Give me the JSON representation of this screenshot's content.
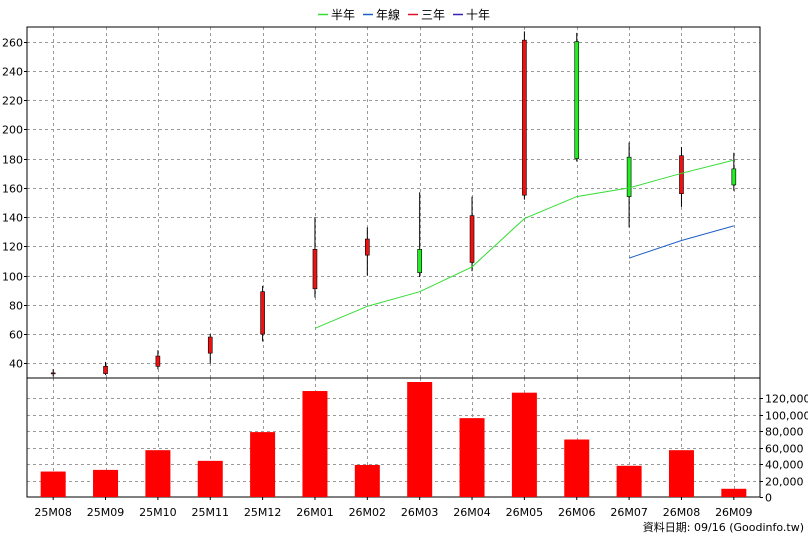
{
  "chart_data": {
    "type": "candlestick+line+bar",
    "legend": [
      {
        "name": "半年",
        "color": "#33dd33"
      },
      {
        "name": "年線",
        "color": "#1f5fc8"
      },
      {
        "name": "三年",
        "color": "#e0102a"
      },
      {
        "name": "十年",
        "color": "#3a1fb0"
      }
    ],
    "categories": [
      "25M08",
      "25M09",
      "25M10",
      "25M11",
      "25M12",
      "26M01",
      "26M02",
      "26M03",
      "26M04",
      "26M05",
      "26M06",
      "26M07",
      "26M08",
      "26M09"
    ],
    "price_axis": {
      "range": [
        30,
        270
      ],
      "ticks": [
        40,
        60,
        80,
        100,
        120,
        140,
        160,
        180,
        200,
        220,
        240,
        260
      ]
    },
    "volume_axis": {
      "range": [
        0,
        140000
      ],
      "ticks": [
        0,
        20000,
        40000,
        60000,
        80000,
        100000,
        120000
      ],
      "tick_labels": [
        "0",
        "20,000",
        "40,000",
        "60,000",
        "80,000",
        "100,000",
        "120,000"
      ]
    },
    "candles": [
      {
        "open": 33,
        "close": 33.5,
        "high": 36,
        "low": 31
      },
      {
        "open": 33,
        "close": 38,
        "high": 41,
        "low": 32
      },
      {
        "open": 38,
        "close": 45,
        "high": 49,
        "low": 36
      },
      {
        "open": 47,
        "close": 58,
        "high": 60,
        "low": 40
      },
      {
        "open": 60,
        "close": 89,
        "high": 93,
        "low": 55
      },
      {
        "open": 91,
        "close": 118,
        "high": 140,
        "low": 85
      },
      {
        "open": 114,
        "close": 125,
        "high": 133,
        "low": 100
      },
      {
        "open": 118,
        "close": 102,
        "high": 157,
        "low": 99
      },
      {
        "open": 109,
        "close": 141,
        "high": 154,
        "low": 103
      },
      {
        "open": 155,
        "close": 261,
        "high": 267,
        "low": 152
      },
      {
        "open": 260,
        "close": 180,
        "high": 266,
        "low": 178
      },
      {
        "open": 181,
        "close": 154,
        "high": 191,
        "low": 133
      },
      {
        "open": 156,
        "close": 182,
        "high": 188,
        "low": 147
      },
      {
        "open": 173,
        "close": 162,
        "high": 184,
        "low": 158
      }
    ],
    "half_year_line": [
      null,
      null,
      null,
      null,
      null,
      64,
      79,
      89,
      106,
      139,
      154,
      160,
      170,
      179
    ],
    "year_line": [
      null,
      null,
      null,
      null,
      null,
      null,
      null,
      null,
      null,
      null,
      null,
      112,
      124,
      134
    ],
    "volume": [
      31000,
      33000,
      57000,
      44000,
      79000,
      129000,
      39000,
      140000,
      96000,
      127000,
      70000,
      38000,
      57000,
      10000
    ],
    "footer": "資料日期: 09/16  (Goodinfo.tw)"
  }
}
